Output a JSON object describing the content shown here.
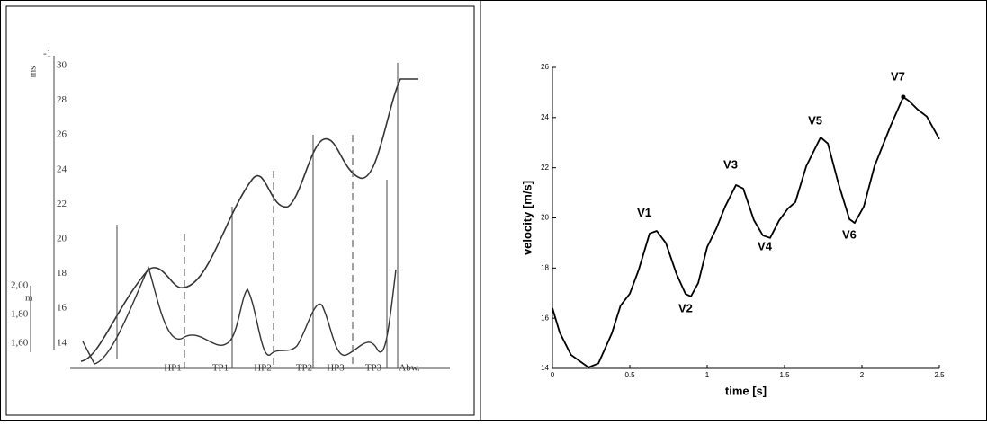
{
  "left_figure": {
    "speed_ticks": [
      "30",
      "28",
      "26",
      "24",
      "22",
      "20",
      "18",
      "16",
      "14"
    ],
    "speed_unit": "ms",
    "speed_unit_exp": "-1",
    "height_ticks": [
      "2,00",
      "1,80",
      "1,60"
    ],
    "height_unit": "m",
    "phases": [
      "HP1",
      "TP1",
      "HP2",
      "TP2",
      "HP3",
      "TP3",
      "Abw."
    ]
  },
  "chart_data": {
    "type": "line",
    "x_label": "time [s]",
    "y_label": "velocity [m/s]",
    "x": [
      0,
      0.047,
      0.12,
      0.233,
      0.297,
      0.384,
      0.44,
      0.5,
      0.558,
      0.628,
      0.674,
      0.733,
      0.802,
      0.86,
      0.895,
      0.942,
      1.0,
      1.058,
      1.116,
      1.186,
      1.233,
      1.302,
      1.36,
      1.407,
      1.465,
      1.523,
      1.57,
      1.64,
      1.733,
      1.78,
      1.849,
      1.919,
      1.953,
      2.012,
      2.081,
      2.186,
      2.267,
      2.302,
      2.36,
      2.419,
      2.5
    ],
    "series": [
      {
        "color": "#000000",
        "values": [
          16.4,
          15.43,
          14.54,
          14.04,
          14.2,
          15.4,
          16.5,
          16.98,
          17.94,
          19.38,
          19.48,
          19.0,
          17.76,
          16.97,
          16.87,
          17.4,
          18.84,
          19.56,
          20.45,
          21.31,
          21.17,
          19.91,
          19.3,
          19.2,
          19.9,
          20.38,
          20.63,
          22.06,
          23.21,
          22.96,
          21.35,
          19.95,
          19.8,
          20.45,
          22.06,
          23.68,
          24.82,
          24.67,
          24.32,
          24.04,
          23.14
        ]
      }
    ],
    "annotations": [
      "V1",
      "V2",
      "V3",
      "V4",
      "V5",
      "V6",
      "V7"
    ],
    "xlim": [
      0,
      2.5
    ],
    "ylim": [
      14,
      26
    ],
    "xticks": [
      0,
      0.5,
      1,
      1.5,
      2,
      2.5
    ],
    "yticks": [
      14,
      16,
      18,
      20,
      22,
      24,
      26
    ]
  }
}
